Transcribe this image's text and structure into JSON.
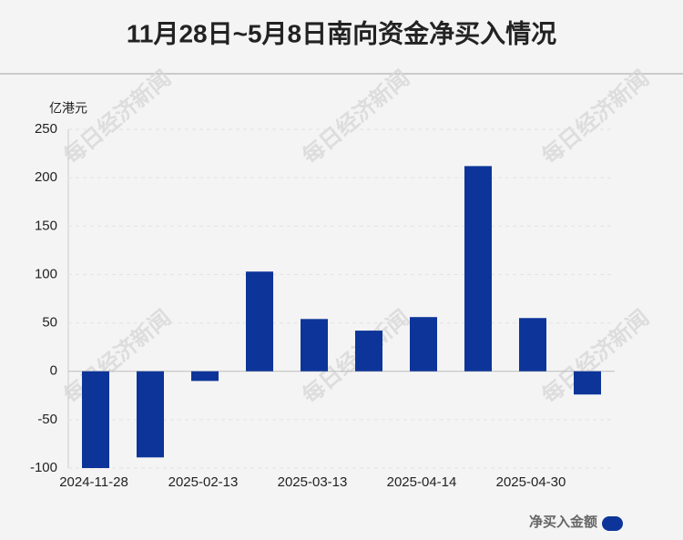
{
  "chart_data": {
    "type": "bar",
    "title": "11月28日~5月8日南向资金净买入情况",
    "y_label": "亿港元",
    "categories": [
      "2024-11-28",
      null,
      "2025-02-13",
      null,
      "2025-03-13",
      null,
      "2025-04-14",
      null,
      "2025-04-30",
      null
    ],
    "series": [
      {
        "name": "净买入金额",
        "color": "#0d3599",
        "values": [
          -100,
          -89,
          -10,
          103,
          54,
          42,
          56,
          212,
          55,
          -24
        ]
      }
    ],
    "ylim": [
      -100,
      250
    ],
    "yticks": [
      -100,
      -50,
      0,
      50,
      100,
      150,
      200,
      250
    ],
    "grid": true,
    "watermark": "每日经济新闻"
  }
}
